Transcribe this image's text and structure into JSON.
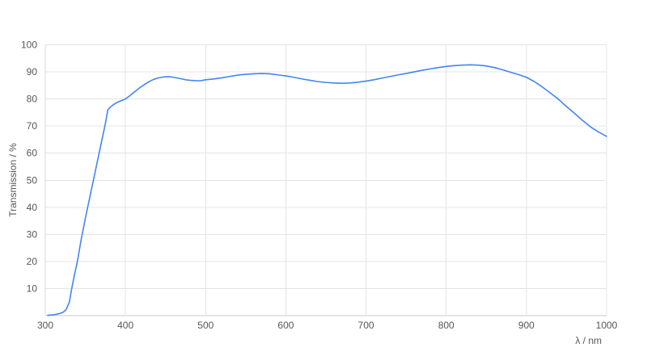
{
  "page": {
    "background": "#ffffff"
  },
  "colors": {
    "grid": "#e4e4e4",
    "axis_bottom": "#c8c8c8",
    "axis_left": "#d9d9d9",
    "tick_text": "#565656",
    "series_line": "#4285f4"
  },
  "chart_data": {
    "type": "line",
    "xlabel": "λ / nm",
    "ylabel": "Transmission / %",
    "xlim": [
      300,
      1000
    ],
    "ylim": [
      0,
      100
    ],
    "x_ticks": [
      300,
      400,
      500,
      600,
      700,
      800,
      900,
      1000
    ],
    "y_ticks": [
      10,
      20,
      30,
      40,
      50,
      60,
      70,
      80,
      90,
      100
    ],
    "grid": true,
    "legend_position": "none",
    "series": [
      {
        "name": "Transmission",
        "color": "#4285f4",
        "points": [
          [
            303,
            0.1
          ],
          [
            306,
            0.2
          ],
          [
            310,
            0.3
          ],
          [
            314,
            0.5
          ],
          [
            318,
            0.8
          ],
          [
            322,
            1.2
          ],
          [
            326,
            2.2
          ],
          [
            330,
            5.0
          ],
          [
            333,
            10.0
          ],
          [
            336,
            14.5
          ],
          [
            340,
            20.0
          ],
          [
            345,
            28.5
          ],
          [
            350,
            36.0
          ],
          [
            355,
            43.0
          ],
          [
            360,
            50.0
          ],
          [
            365,
            57.0
          ],
          [
            370,
            64.0
          ],
          [
            375,
            71.0
          ],
          [
            378,
            76.0
          ],
          [
            382,
            77.2
          ],
          [
            386,
            78.1
          ],
          [
            390,
            78.8
          ],
          [
            395,
            79.4
          ],
          [
            400,
            80.0
          ],
          [
            405,
            81.1
          ],
          [
            410,
            82.3
          ],
          [
            415,
            83.5
          ],
          [
            420,
            84.6
          ],
          [
            425,
            85.6
          ],
          [
            430,
            86.5
          ],
          [
            435,
            87.2
          ],
          [
            440,
            87.7
          ],
          [
            445,
            88.0
          ],
          [
            450,
            88.2
          ],
          [
            455,
            88.2
          ],
          [
            460,
            88.0
          ],
          [
            465,
            87.7
          ],
          [
            470,
            87.4
          ],
          [
            475,
            87.1
          ],
          [
            480,
            86.9
          ],
          [
            485,
            86.8
          ],
          [
            490,
            86.7
          ],
          [
            495,
            86.8
          ],
          [
            500,
            87.1
          ],
          [
            510,
            87.4
          ],
          [
            520,
            87.8
          ],
          [
            530,
            88.3
          ],
          [
            540,
            88.8
          ],
          [
            550,
            89.1
          ],
          [
            560,
            89.3
          ],
          [
            570,
            89.4
          ],
          [
            580,
            89.3
          ],
          [
            590,
            88.9
          ],
          [
            600,
            88.5
          ],
          [
            610,
            88.0
          ],
          [
            620,
            87.4
          ],
          [
            630,
            86.9
          ],
          [
            640,
            86.4
          ],
          [
            650,
            86.1
          ],
          [
            660,
            85.9
          ],
          [
            670,
            85.8
          ],
          [
            680,
            85.9
          ],
          [
            690,
            86.2
          ],
          [
            700,
            86.6
          ],
          [
            710,
            87.1
          ],
          [
            720,
            87.7
          ],
          [
            730,
            88.3
          ],
          [
            740,
            88.9
          ],
          [
            750,
            89.4
          ],
          [
            760,
            90.0
          ],
          [
            770,
            90.6
          ],
          [
            780,
            91.1
          ],
          [
            790,
            91.6
          ],
          [
            800,
            92.0
          ],
          [
            810,
            92.3
          ],
          [
            820,
            92.5
          ],
          [
            830,
            92.6
          ],
          [
            840,
            92.5
          ],
          [
            850,
            92.2
          ],
          [
            860,
            91.6
          ],
          [
            870,
            90.8
          ],
          [
            880,
            89.9
          ],
          [
            890,
            89.0
          ],
          [
            900,
            88.0
          ],
          [
            910,
            86.4
          ],
          [
            920,
            84.4
          ],
          [
            930,
            82.2
          ],
          [
            940,
            79.9
          ],
          [
            950,
            77.2
          ],
          [
            960,
            74.7
          ],
          [
            970,
            72.1
          ],
          [
            980,
            69.7
          ],
          [
            990,
            67.8
          ],
          [
            1000,
            66.2
          ]
        ]
      }
    ]
  }
}
